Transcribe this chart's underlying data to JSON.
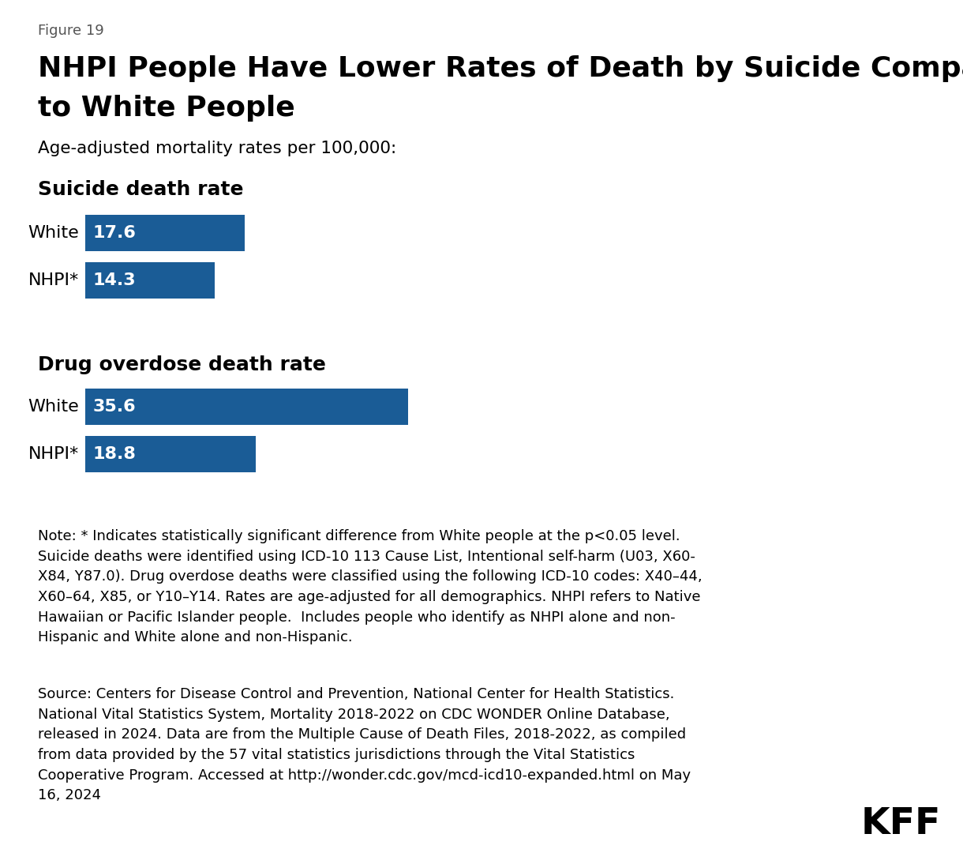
{
  "figure_label": "Figure 19",
  "title_line1": "NHPI People Have Lower Rates of Death by Suicide Compared",
  "title_line2": "to White People",
  "subtitle": "Age-adjusted mortality rates per 100,000:",
  "section1_label": "Suicide death rate",
  "section2_label": "Drug overdose death rate",
  "categories_suicide": [
    "White",
    "NHPI*"
  ],
  "values_suicide": [
    17.6,
    14.3
  ],
  "categories_drug": [
    "White",
    "NHPI*"
  ],
  "values_drug": [
    35.6,
    18.8
  ],
  "bar_color": "#1a5c96",
  "bar_text_color": "#ffffff",
  "label_color": "#000000",
  "background_color": "#ffffff",
  "note_text": "Note: * Indicates statistically significant difference from White people at the p<0.05 level.\nSuicide deaths were identified using ICD-10 113 Cause List, Intentional self-harm (U03, X60-\nX84, Y87.0). Drug overdose deaths were classified using the following ICD-10 codes: X40–44,\nX60–64, X85, or Y10–Y14. Rates are age-adjusted for all demographics. NHPI refers to Native\nHawaiian or Pacific Islander people.  Includes people who identify as NHPI alone and non-\nHispanic and White alone and non-Hispanic.",
  "source_text": "Source: Centers for Disease Control and Prevention, National Center for Health Statistics.\nNational Vital Statistics System, Mortality 2018-2022 on CDC WONDER Online Database,\nreleased in 2024. Data are from the Multiple Cause of Death Files, 2018-2022, as compiled\nfrom data provided by the 57 vital statistics jurisdictions through the Vital Statistics\nCooperative Program. Accessed at http://wonder.cdc.gov/mcd-icd10-expanded.html on May\n16, 2024",
  "kff_label": "KFF",
  "max_value": 40,
  "fig_width": 12.2,
  "fig_height": 10.94
}
